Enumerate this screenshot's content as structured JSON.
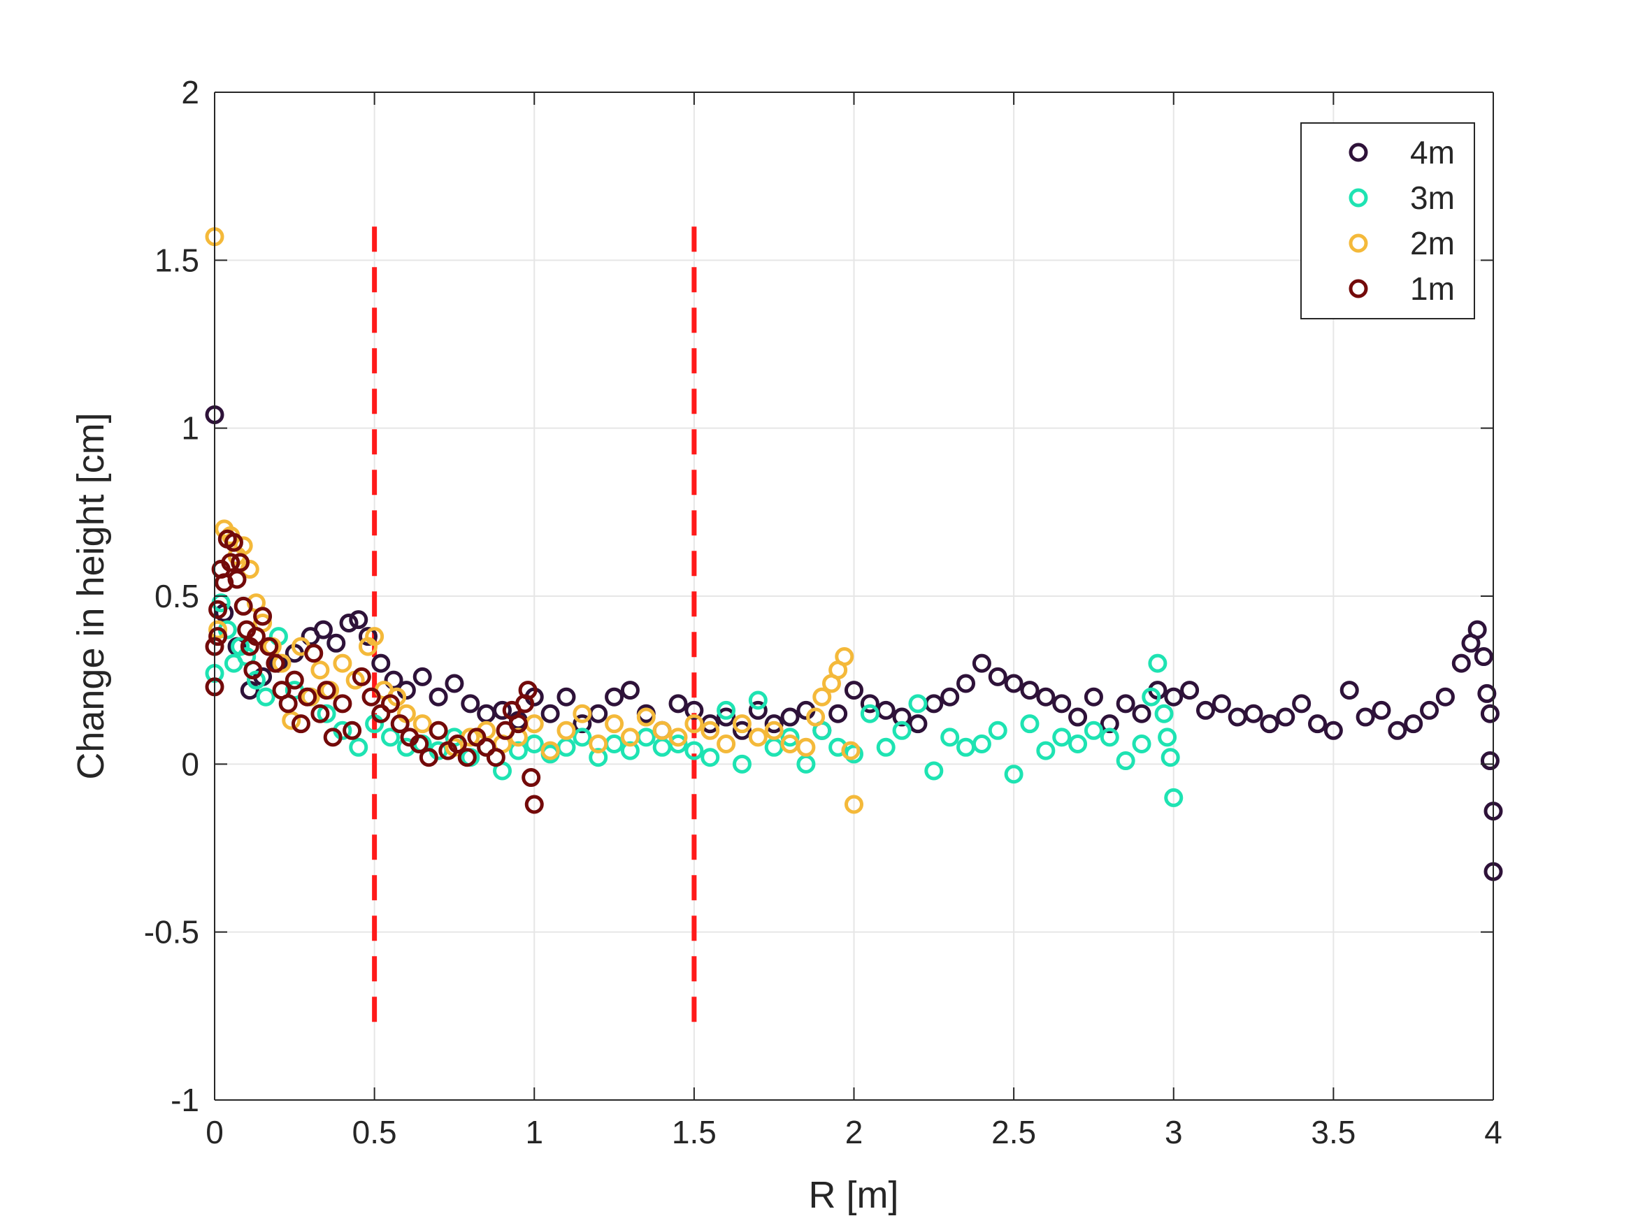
{
  "chart_data": {
    "type": "scatter",
    "title": "",
    "xlabel": "R [m]",
    "ylabel": "Change in height [cm]",
    "xlim": [
      0,
      4
    ],
    "ylim": [
      -1,
      2
    ],
    "xticks": [
      0,
      0.5,
      1,
      1.5,
      2,
      2.5,
      3,
      3.5,
      4
    ],
    "xtick_labels": [
      "0",
      "0.5",
      "1",
      "1.5",
      "2",
      "2.5",
      "3",
      "3.5",
      "4"
    ],
    "yticks": [
      -1,
      -0.5,
      0,
      0.5,
      1,
      1.5,
      2
    ],
    "ytick_labels": [
      "-1",
      "-0.5",
      "0",
      "0.5",
      "1",
      "1.5",
      "2"
    ],
    "grid": true,
    "legend_position": "top-right",
    "reference_lines": [
      {
        "x": 0.5,
        "y_range": [
          -0.8,
          1.6
        ],
        "color": "#ff1a1a",
        "style": "dashed"
      },
      {
        "x": 1.5,
        "y_range": [
          -0.8,
          1.6
        ],
        "color": "#ff1a1a",
        "style": "dashed"
      }
    ],
    "series": [
      {
        "name": "4m",
        "color": "#2e1239",
        "x": [
          0.0,
          0.03,
          0.07,
          0.11,
          0.15,
          0.2,
          0.25,
          0.3,
          0.34,
          0.38,
          0.42,
          0.45,
          0.48,
          0.52,
          0.56,
          0.6,
          0.65,
          0.7,
          0.75,
          0.8,
          0.85,
          0.9,
          0.95,
          1.0,
          1.05,
          1.1,
          1.15,
          1.2,
          1.25,
          1.3,
          1.35,
          1.4,
          1.45,
          1.5,
          1.55,
          1.6,
          1.65,
          1.7,
          1.75,
          1.8,
          1.85,
          1.9,
          1.95,
          2.0,
          2.05,
          2.1,
          2.15,
          2.2,
          2.25,
          2.3,
          2.35,
          2.4,
          2.45,
          2.5,
          2.55,
          2.6,
          2.65,
          2.7,
          2.75,
          2.8,
          2.85,
          2.9,
          2.95,
          3.0,
          3.05,
          3.1,
          3.15,
          3.2,
          3.25,
          3.3,
          3.35,
          3.4,
          3.45,
          3.5,
          3.55,
          3.6,
          3.65,
          3.7,
          3.75,
          3.8,
          3.85,
          3.9,
          3.93,
          3.95,
          3.97,
          3.98,
          3.99,
          3.99,
          4.0,
          4.0
        ],
        "y": [
          1.04,
          0.45,
          0.35,
          0.22,
          0.26,
          0.3,
          0.33,
          0.38,
          0.4,
          0.36,
          0.42,
          0.43,
          0.38,
          0.3,
          0.25,
          0.22,
          0.26,
          0.2,
          0.24,
          0.18,
          0.15,
          0.16,
          0.13,
          0.2,
          0.15,
          0.2,
          0.12,
          0.15,
          0.2,
          0.22,
          0.15,
          0.1,
          0.18,
          0.16,
          0.12,
          0.14,
          0.1,
          0.16,
          0.12,
          0.14,
          0.16,
          0.1,
          0.15,
          0.22,
          0.18,
          0.16,
          0.14,
          0.12,
          0.18,
          0.2,
          0.24,
          0.3,
          0.26,
          0.24,
          0.22,
          0.2,
          0.18,
          0.14,
          0.2,
          0.12,
          0.18,
          0.15,
          0.22,
          0.2,
          0.22,
          0.16,
          0.18,
          0.14,
          0.15,
          0.12,
          0.14,
          0.18,
          0.12,
          0.1,
          0.22,
          0.14,
          0.16,
          0.1,
          0.12,
          0.16,
          0.2,
          0.3,
          0.36,
          0.4,
          0.32,
          0.21,
          0.15,
          0.01,
          -0.14,
          -0.32
        ]
      },
      {
        "name": "3m",
        "color": "#1ee3b2",
        "x": [
          0.0,
          0.02,
          0.04,
          0.06,
          0.08,
          0.1,
          0.13,
          0.16,
          0.2,
          0.25,
          0.3,
          0.35,
          0.4,
          0.45,
          0.5,
          0.55,
          0.6,
          0.65,
          0.7,
          0.75,
          0.8,
          0.85,
          0.9,
          0.95,
          1.0,
          1.05,
          1.1,
          1.15,
          1.2,
          1.25,
          1.3,
          1.35,
          1.4,
          1.45,
          1.5,
          1.55,
          1.6,
          1.65,
          1.7,
          1.75,
          1.8,
          1.85,
          1.9,
          1.95,
          2.0,
          2.05,
          2.1,
          2.15,
          2.2,
          2.25,
          2.3,
          2.35,
          2.4,
          2.45,
          2.5,
          2.55,
          2.6,
          2.65,
          2.7,
          2.75,
          2.8,
          2.85,
          2.9,
          2.93,
          2.95,
          2.97,
          2.98,
          2.99,
          3.0
        ],
        "y": [
          0.27,
          0.48,
          0.4,
          0.3,
          0.35,
          0.32,
          0.25,
          0.2,
          0.38,
          0.22,
          0.2,
          0.15,
          0.1,
          0.05,
          0.12,
          0.08,
          0.05,
          0.06,
          0.04,
          0.08,
          0.02,
          0.05,
          -0.02,
          0.04,
          0.06,
          0.03,
          0.05,
          0.08,
          0.02,
          0.06,
          0.04,
          0.08,
          0.05,
          0.06,
          0.04,
          0.02,
          0.16,
          0.0,
          0.19,
          0.05,
          0.08,
          0.0,
          0.1,
          0.05,
          0.03,
          0.15,
          0.05,
          0.1,
          0.18,
          -0.02,
          0.08,
          0.05,
          0.06,
          0.1,
          -0.03,
          0.12,
          0.04,
          0.08,
          0.06,
          0.1,
          0.08,
          0.01,
          0.06,
          0.2,
          0.3,
          0.15,
          0.08,
          0.02,
          -0.1
        ]
      },
      {
        "name": "2m",
        "color": "#f4b93a",
        "x": [
          0.0,
          0.01,
          0.03,
          0.05,
          0.07,
          0.09,
          0.11,
          0.13,
          0.15,
          0.18,
          0.21,
          0.24,
          0.27,
          0.3,
          0.33,
          0.36,
          0.4,
          0.44,
          0.48,
          0.5,
          0.53,
          0.57,
          0.6,
          0.65,
          0.7,
          0.75,
          0.8,
          0.85,
          0.9,
          0.95,
          1.0,
          1.05,
          1.1,
          1.15,
          1.2,
          1.25,
          1.3,
          1.35,
          1.4,
          1.45,
          1.5,
          1.55,
          1.6,
          1.65,
          1.7,
          1.75,
          1.8,
          1.85,
          1.88,
          1.9,
          1.93,
          1.95,
          1.97,
          1.99,
          2.0
        ],
        "y": [
          1.57,
          0.4,
          0.7,
          0.68,
          0.62,
          0.65,
          0.58,
          0.48,
          0.42,
          0.35,
          0.3,
          0.13,
          0.35,
          0.2,
          0.28,
          0.22,
          0.3,
          0.25,
          0.35,
          0.38,
          0.22,
          0.2,
          0.15,
          0.12,
          0.1,
          0.05,
          0.08,
          0.1,
          0.06,
          0.08,
          0.12,
          0.04,
          0.1,
          0.15,
          0.06,
          0.12,
          0.08,
          0.14,
          0.1,
          0.08,
          0.12,
          0.1,
          0.06,
          0.12,
          0.08,
          0.1,
          0.06,
          0.05,
          0.14,
          0.2,
          0.24,
          0.28,
          0.32,
          0.04,
          -0.12
        ]
      },
      {
        "name": "1m",
        "color": "#730a0a",
        "x": [
          0.0,
          0.0,
          0.01,
          0.01,
          0.02,
          0.03,
          0.04,
          0.05,
          0.06,
          0.07,
          0.08,
          0.09,
          0.1,
          0.11,
          0.12,
          0.13,
          0.15,
          0.17,
          0.19,
          0.21,
          0.23,
          0.25,
          0.27,
          0.29,
          0.31,
          0.33,
          0.35,
          0.37,
          0.4,
          0.43,
          0.46,
          0.49,
          0.52,
          0.55,
          0.58,
          0.61,
          0.64,
          0.67,
          0.7,
          0.73,
          0.76,
          0.79,
          0.82,
          0.85,
          0.88,
          0.91,
          0.93,
          0.95,
          0.97,
          0.98,
          0.99,
          1.0
        ],
        "y": [
          0.23,
          0.35,
          0.46,
          0.38,
          0.58,
          0.54,
          0.67,
          0.6,
          0.66,
          0.55,
          0.6,
          0.47,
          0.4,
          0.35,
          0.28,
          0.38,
          0.44,
          0.35,
          0.3,
          0.22,
          0.18,
          0.25,
          0.12,
          0.2,
          0.33,
          0.15,
          0.22,
          0.08,
          0.18,
          0.1,
          0.26,
          0.2,
          0.15,
          0.18,
          0.12,
          0.08,
          0.06,
          0.02,
          0.1,
          0.04,
          0.06,
          0.02,
          0.08,
          0.05,
          0.02,
          0.1,
          0.16,
          0.12,
          0.18,
          0.22,
          -0.04,
          -0.12
        ]
      }
    ]
  }
}
